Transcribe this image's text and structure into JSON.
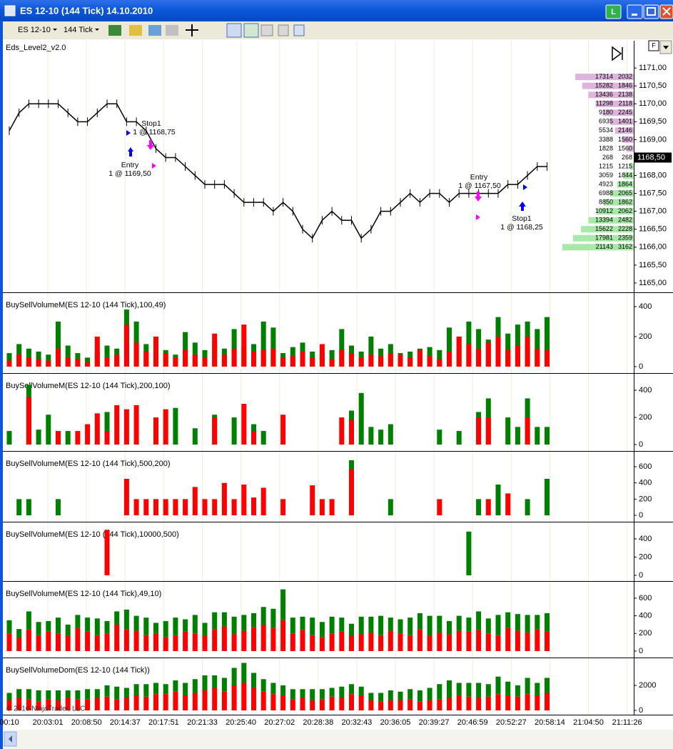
{
  "window": {
    "title": "ES 12-10 (144 Tick)  14.10.2010",
    "instrument": "ES 12-10",
    "period": "144 Tick",
    "badge": "L",
    "f_button": "F"
  },
  "copyright": "© 2010 NinjaTrader, LLC",
  "time_axis": {
    "labels": [
      "00:10",
      "20:03:01",
      "20:08:50",
      "20:14:37",
      "20:17:51",
      "20:21:33",
      "20:25:40",
      "20:27:02",
      "20:28:38",
      "20:32:43",
      "20:36:05",
      "20:39:27",
      "20:46:59",
      "20:52:27",
      "20:58:14",
      "21:04:50",
      "21:11:26"
    ]
  },
  "chart_data": [
    {
      "type": "line",
      "title": "Eds_Level2_v2.0",
      "color": "#000000",
      "values": [
        1169.25,
        1169.75,
        1170,
        1170,
        1170,
        1170,
        1169.75,
        1169.5,
        1169.5,
        1169.75,
        1170,
        1170,
        1169.5,
        1169.5,
        1169.25,
        1168.75,
        1168.5,
        1168.5,
        1168.25,
        1168,
        1167.75,
        1167.75,
        1167.75,
        1167.5,
        1167.25,
        1167.25,
        1167.25,
        1167,
        1167.25,
        1167,
        1166.5,
        1166.25,
        1166.75,
        1167,
        1166.75,
        1166.75,
        1166.25,
        1166.5,
        1167,
        1167,
        1167.25,
        1167.5,
        1167.25,
        1167.5,
        1167.5,
        1167.25,
        1167.5,
        1167.5,
        1167.5,
        1167.5,
        1167.5,
        1167.75,
        1167.75,
        1168,
        1168.25,
        1168.25
      ],
      "ylim": [
        1164.74,
        1171.76
      ],
      "yticks": [
        {
          "value": 1165,
          "label": "1165,00"
        },
        {
          "value": 1165.5,
          "label": "1165,50"
        },
        {
          "value": 1166,
          "label": "1166,00"
        },
        {
          "value": 1166.5,
          "label": "1166,50"
        },
        {
          "value": 1167,
          "label": "1167,00"
        },
        {
          "value": 1167.5,
          "label": "1167,50"
        },
        {
          "value": 1168,
          "label": "1168,00"
        },
        {
          "value": 1168.5,
          "label": "1168,50"
        },
        {
          "value": 1169,
          "label": "1169,00"
        },
        {
          "value": 1169.5,
          "label": "1169,50"
        },
        {
          "value": 1170,
          "label": "1170,00"
        },
        {
          "value": 1170.5,
          "label": "1170,50"
        },
        {
          "value": 1171,
          "label": "1171,00"
        }
      ],
      "last_price": {
        "value": 1168.5,
        "label": "1168,50"
      },
      "annotations": [
        {
          "text": "Stop1",
          "detail": "1 @ 1168,75"
        },
        {
          "text": "Entry",
          "detail": "1 @ 1169,50"
        },
        {
          "text": "Entry",
          "detail": "1 @ 1167,50"
        },
        {
          "text": "Stop1",
          "detail": "1 @ 1168,25"
        }
      ],
      "ladder": {
        "ask_color": "#dcb4dc",
        "bid_color": "#a8e8a8",
        "prices": [
          1170.75,
          1170.5,
          1170.25,
          1170,
          1169.75,
          1169.5,
          1169.25,
          1169,
          1168.75,
          1168.5,
          1168.25,
          1168,
          1167.75,
          1167.5,
          1167.25,
          1167,
          1166.75,
          1166.5,
          1166.25,
          1166
        ],
        "cumulative": [
          17314,
          15282,
          13436,
          11298,
          9180,
          6935,
          5534,
          3388,
          1828,
          268,
          1215,
          3059,
          4923,
          6988,
          8850,
          10912,
          13394,
          15622,
          17981,
          21143
        ],
        "sizes": [
          2032,
          1846,
          2138,
          2118,
          2245,
          1401,
          2146,
          1560,
          1560,
          268,
          1215,
          1844,
          1864,
          2065,
          1862,
          2062,
          2482,
          2228,
          2359,
          3162
        ]
      }
    },
    {
      "type": "bar",
      "title": "BuySellVolumeM(ES 12-10 (144 Tick),100,49)",
      "stacked": false,
      "ylim": [
        -43,
        490
      ],
      "yticks": [
        0,
        200,
        400
      ],
      "series": [
        {
          "color": "#008000",
          "values": [
            90,
            150,
            120,
            100,
            80,
            300,
            140,
            90,
            60,
            100,
            140,
            120,
            380,
            300,
            150,
            120,
            110,
            80,
            230,
            160,
            110,
            170,
            120,
            250,
            140,
            150,
            300,
            260,
            90,
            130,
            160,
            100,
            90,
            110,
            250,
            140,
            100,
            200,
            120,
            150,
            90,
            100,
            120,
            130,
            110,
            260,
            200,
            300,
            250,
            180,
            330,
            220,
            280,
            300,
            250,
            330
          ]
        },
        {
          "color": "#ff0000",
          "values": [
            40,
            80,
            60,
            50,
            40,
            120,
            60,
            50,
            30,
            200,
            60,
            80,
            280,
            160,
            100,
            200,
            90,
            60,
            110,
            80,
            60,
            220,
            80,
            120,
            280,
            100,
            110,
            120,
            60,
            70,
            100,
            60,
            150,
            50,
            110,
            90,
            60,
            80,
            70,
            90,
            80,
            60,
            110,
            70,
            50,
            100,
            200,
            150,
            120,
            160,
            200,
            110,
            140,
            200,
            120,
            110
          ]
        }
      ]
    },
    {
      "type": "bar",
      "title": "BuySellVolumeM(ES 12-10 (144 Tick),200,100)",
      "stacked": false,
      "ylim": [
        -47,
        521
      ],
      "yticks": [
        0,
        200,
        400
      ],
      "series": [
        {
          "color": "#008000",
          "values": [
            100,
            null,
            440,
            110,
            220,
            null,
            100,
            null,
            null,
            null,
            240,
            null,
            null,
            null,
            null,
            null,
            null,
            270,
            null,
            120,
            null,
            220,
            null,
            200,
            null,
            150,
            100,
            null,
            null,
            null,
            null,
            null,
            null,
            null,
            null,
            250,
            380,
            130,
            110,
            150,
            null,
            null,
            null,
            null,
            110,
            null,
            100,
            null,
            240,
            340,
            null,
            200,
            130,
            340,
            130,
            130
          ]
        },
        {
          "color": "#ff0000",
          "values": [
            null,
            null,
            350,
            null,
            null,
            100,
            null,
            100,
            150,
            230,
            100,
            290,
            260,
            290,
            null,
            200,
            260,
            null,
            null,
            null,
            null,
            200,
            null,
            null,
            300,
            100,
            null,
            null,
            220,
            null,
            null,
            null,
            null,
            null,
            200,
            180,
            null,
            null,
            null,
            null,
            null,
            null,
            null,
            null,
            null,
            null,
            null,
            null,
            200,
            200,
            null,
            null,
            null,
            200,
            null,
            null
          ]
        }
      ]
    },
    {
      "type": "bar",
      "title": "BuySellVolumeM(ES 12-10 (144 Tick),500,200)",
      "stacked": false,
      "ylim": [
        -79,
        785
      ],
      "yticks": [
        0,
        200,
        400,
        600
      ],
      "series": [
        {
          "color": "#008000",
          "values": [
            null,
            200,
            200,
            null,
            null,
            200,
            null,
            null,
            null,
            null,
            null,
            null,
            null,
            null,
            null,
            null,
            null,
            null,
            null,
            null,
            null,
            null,
            null,
            null,
            null,
            null,
            null,
            null,
            null,
            null,
            null,
            null,
            null,
            null,
            null,
            680,
            null,
            null,
            null,
            200,
            null,
            null,
            null,
            null,
            null,
            null,
            null,
            null,
            200,
            null,
            380,
            null,
            null,
            200,
            null,
            450
          ]
        },
        {
          "color": "#ff0000",
          "values": [
            null,
            null,
            null,
            null,
            null,
            null,
            null,
            null,
            null,
            null,
            null,
            null,
            450,
            200,
            200,
            200,
            200,
            200,
            200,
            350,
            200,
            200,
            400,
            200,
            380,
            220,
            340,
            null,
            200,
            null,
            null,
            370,
            200,
            200,
            null,
            570,
            null,
            null,
            null,
            null,
            null,
            null,
            null,
            null,
            200,
            null,
            null,
            null,
            null,
            200,
            null,
            270,
            null,
            null,
            null,
            null
          ]
        }
      ]
    },
    {
      "type": "bar",
      "title": "BuySellVolumeM(ES 12-10 (144 Tick),10000,500)",
      "stacked": false,
      "ylim": [
        -63,
        580
      ],
      "yticks": [
        0,
        200,
        400
      ],
      "series": [
        {
          "color": "#008000",
          "values": [
            null,
            null,
            null,
            null,
            null,
            null,
            null,
            null,
            null,
            null,
            null,
            null,
            null,
            null,
            null,
            null,
            null,
            null,
            null,
            null,
            null,
            null,
            null,
            null,
            null,
            null,
            null,
            null,
            null,
            null,
            null,
            null,
            null,
            null,
            null,
            null,
            null,
            null,
            null,
            null,
            null,
            null,
            null,
            null,
            null,
            null,
            null,
            480,
            null,
            null,
            null,
            null,
            null,
            null,
            null,
            null
          ]
        },
        {
          "color": "#ff0000",
          "values": [
            null,
            null,
            null,
            null,
            null,
            null,
            null,
            null,
            null,
            null,
            500,
            null,
            null,
            null,
            null,
            null,
            null,
            null,
            null,
            null,
            null,
            null,
            null,
            null,
            null,
            null,
            null,
            null,
            null,
            null,
            null,
            null,
            null,
            null,
            null,
            null,
            null,
            null,
            null,
            null,
            null,
            null,
            null,
            null,
            null,
            null,
            null,
            null,
            null,
            null,
            null,
            null,
            null,
            null,
            null,
            null
          ]
        }
      ]
    },
    {
      "type": "bar",
      "title": "BuySellVolumeM(ES 12-10 (144 Tick),49,10)",
      "stacked": true,
      "ylim": [
        -73,
        786
      ],
      "yticks": [
        0,
        200,
        400,
        600
      ],
      "series": [
        {
          "color": "#ff0000",
          "values": [
            200,
            150,
            250,
            180,
            220,
            200,
            170,
            260,
            220,
            180,
            200,
            300,
            250,
            230,
            180,
            200,
            160,
            180,
            220,
            200,
            170,
            250,
            280,
            190,
            230,
            270,
            300,
            260,
            350,
            200,
            240,
            180,
            160,
            200,
            220,
            170,
            190,
            210,
            180,
            230,
            200,
            180,
            250,
            170,
            210,
            190,
            230,
            220,
            240,
            200,
            180,
            260,
            230,
            210,
            250,
            220
          ]
        },
        {
          "color": "#008000",
          "values": [
            150,
            100,
            200,
            150,
            120,
            180,
            130,
            150,
            160,
            190,
            140,
            150,
            220,
            170,
            200,
            120,
            180,
            200,
            140,
            210,
            150,
            190,
            160,
            200,
            180,
            160,
            200,
            220,
            350,
            180,
            150,
            200,
            170,
            190,
            160,
            140,
            200,
            180,
            220,
            150,
            160,
            200,
            180,
            230,
            190,
            150,
            170,
            160,
            210,
            170,
            230,
            180,
            190,
            200,
            160,
            210
          ]
        }
      ]
    },
    {
      "type": "bar",
      "title": "BuySellVolumeDom(ES 12-10 (144 Tick))",
      "stacked": true,
      "ylim": [
        -343,
        4171
      ],
      "yticks": [
        0,
        2000
      ],
      "series": [
        {
          "color": "#ff0000",
          "values": [
            800,
            1000,
            900,
            700,
            900,
            800,
            1000,
            900,
            900,
            1000,
            1100,
            900,
            1000,
            1200,
            1100,
            1300,
            1300,
            1500,
            1200,
            1400,
            1600,
            1800,
            1500,
            2000,
            2200,
            1800,
            1500,
            1300,
            1200,
            900,
            1000,
            800,
            900,
            1100,
            1000,
            1300,
            1200,
            800,
            700,
            800,
            800,
            900,
            700,
            800,
            900,
            1000,
            1200,
            1100,
            1000,
            1100,
            1300,
            1200,
            1100,
            1300,
            1200,
            1400
          ]
        },
        {
          "color": "#008000",
          "values": [
            600,
            700,
            800,
            900,
            700,
            800,
            600,
            700,
            800,
            700,
            900,
            1000,
            800,
            900,
            1000,
            900,
            800,
            900,
            1000,
            1100,
            1200,
            1000,
            1100,
            1400,
            1600,
            1200,
            1000,
            900,
            800,
            800,
            700,
            900,
            800,
            700,
            900,
            800,
            700,
            600,
            700,
            800,
            700,
            800,
            900,
            1000,
            1200,
            1400,
            1000,
            1100,
            1200,
            1000,
            1400,
            1100,
            900,
            1300,
            1000,
            1200
          ]
        }
      ]
    }
  ]
}
